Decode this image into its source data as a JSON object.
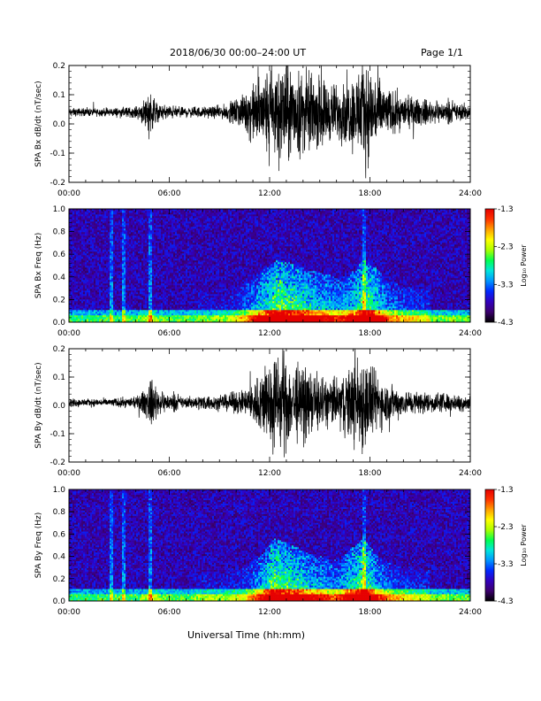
{
  "header": {
    "title": "2018/06/30  00:00–24:00 UT",
    "page_label": "Page 1/1"
  },
  "xlabel": "Universal Time (hh:mm)",
  "colorbar": {
    "label": "Log₁₀ Power",
    "ticks": [
      "-1.3",
      "-2.3",
      "-3.3",
      "-4.3"
    ],
    "range": [
      -4.3,
      -1.3
    ],
    "colors": [
      "#000000",
      "#4b0082",
      "#3300cc",
      "#0033ff",
      "#00aaff",
      "#00ffcc",
      "#00ff44",
      "#aaff00",
      "#ffff00",
      "#ffaa00",
      "#ff3300",
      "#ff0000"
    ]
  },
  "chart_data": [
    {
      "type": "line",
      "ylabel": "SPA Bx dB/dt (nT/sec)",
      "xlim": [
        0,
        24
      ],
      "ylim": [
        -0.2,
        0.2
      ],
      "x_ticks": [
        "00:00",
        "06:00",
        "12:00",
        "18:00",
        "24:00"
      ],
      "y_ticks": [
        "-0.2",
        "-0.1",
        "0.0",
        "0.1",
        "0.2"
      ],
      "baseline": 0.04,
      "amplitude_envelope": [
        [
          0,
          0.015
        ],
        [
          2,
          0.015
        ],
        [
          4,
          0.02
        ],
        [
          4.5,
          0.05
        ],
        [
          4.8,
          0.09
        ],
        [
          5.3,
          0.03
        ],
        [
          7,
          0.02
        ],
        [
          8.5,
          0.02
        ],
        [
          9.5,
          0.03
        ],
        [
          10.5,
          0.07
        ],
        [
          11.5,
          0.14
        ],
        [
          12.5,
          0.2
        ],
        [
          13.5,
          0.17
        ],
        [
          14.5,
          0.14
        ],
        [
          15.5,
          0.12
        ],
        [
          16,
          0.1
        ],
        [
          17,
          0.14
        ],
        [
          17.6,
          0.2
        ],
        [
          18.5,
          0.14
        ],
        [
          19,
          0.09
        ],
        [
          20,
          0.06
        ],
        [
          21,
          0.05
        ],
        [
          22,
          0.04
        ],
        [
          24,
          0.03
        ]
      ],
      "series": [
        {
          "values": []
        }
      ]
    },
    {
      "type": "heatmap",
      "ylabel": "SPA Bx Freq (Hz)",
      "xlim": [
        0,
        24
      ],
      "ylim": [
        0,
        1.0
      ],
      "x_ticks": [
        "00:00",
        "06:00",
        "12:00",
        "18:00",
        "24:00"
      ],
      "y_ticks": [
        "0.0",
        "0.2",
        "0.4",
        "0.6",
        "0.8",
        "1.0"
      ],
      "zlim": [
        -4.3,
        -1.3
      ]
    },
    {
      "type": "line",
      "ylabel": "SPA By dB/dt (nT/sec)",
      "xlim": [
        0,
        24
      ],
      "ylim": [
        -0.2,
        0.2
      ],
      "x_ticks": [
        "00:00",
        "06:00",
        "12:00",
        "18:00",
        "24:00"
      ],
      "y_ticks": [
        "-0.2",
        "-0.1",
        "0.0",
        "0.1",
        "0.2"
      ],
      "baseline": 0.01,
      "amplitude_envelope": [
        [
          0,
          0.015
        ],
        [
          2,
          0.015
        ],
        [
          4,
          0.02
        ],
        [
          4.5,
          0.05
        ],
        [
          5,
          0.09
        ],
        [
          5.5,
          0.04
        ],
        [
          7,
          0.02
        ],
        [
          8,
          0.03
        ],
        [
          9,
          0.025
        ],
        [
          10.5,
          0.05
        ],
        [
          11.5,
          0.12
        ],
        [
          12.2,
          0.2
        ],
        [
          13,
          0.18
        ],
        [
          14.5,
          0.12
        ],
        [
          15.5,
          0.1
        ],
        [
          16,
          0.09
        ],
        [
          17,
          0.16
        ],
        [
          17.6,
          0.2
        ],
        [
          18.3,
          0.12
        ],
        [
          19,
          0.08
        ],
        [
          20,
          0.05
        ],
        [
          21.5,
          0.04
        ],
        [
          24,
          0.03
        ]
      ],
      "series": [
        {
          "values": []
        }
      ]
    },
    {
      "type": "heatmap",
      "ylabel": "SPA By Freq (Hz)",
      "xlim": [
        0,
        24
      ],
      "ylim": [
        0,
        1.0
      ],
      "x_ticks": [
        "00:00",
        "06:00",
        "12:00",
        "18:00",
        "24:00"
      ],
      "y_ticks": [
        "0.0",
        "0.2",
        "0.4",
        "0.6",
        "0.8",
        "1.0"
      ],
      "zlim": [
        -4.3,
        -1.3
      ]
    }
  ]
}
